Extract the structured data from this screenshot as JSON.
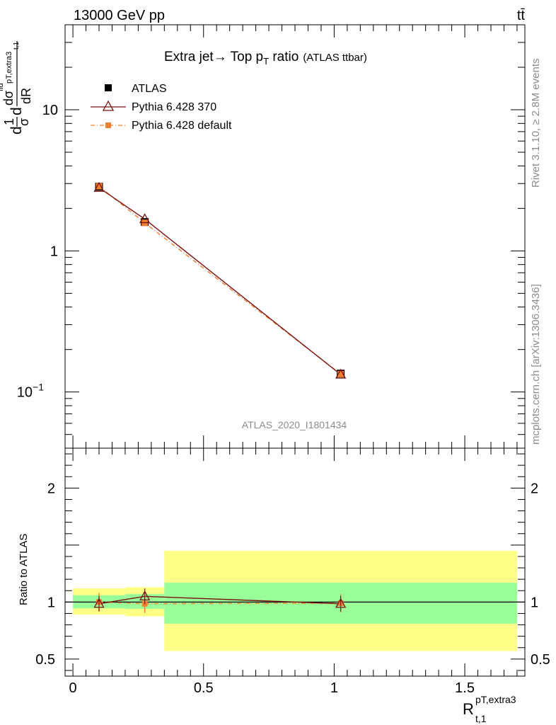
{
  "header": {
    "energy_label": "13000 GeV pp",
    "process_label": "tt̄"
  },
  "side_labels": {
    "rivet": "Rivet 3.1.10, ≥ 2.8M events",
    "mcplots": "mcplots.cern.ch [arXiv:1306.3436]"
  },
  "colors": {
    "atlas": "#000000",
    "pythia_370": "#7a1010",
    "pythia_default": "#f08030",
    "band_inner": "#99ff99",
    "band_outer": "#ffff88"
  },
  "chart_data": [
    {
      "type": "line",
      "title": "Extra jet→ Top p_T ratio (ATLAS ttbar)",
      "title_parts": {
        "main": "Extra jet→ Top p",
        "sub": "T",
        "rest": " ratio",
        "small": "(ATLAS ttbar)"
      },
      "ylabel": "d(1/σ)dσ^fid/dR_{pT,extra3 t,1}",
      "ylabel_parts": {
        "d1": "d",
        "one": "1",
        "sigma": "σ",
        "d2": "d",
        "dsigma": "dσ",
        "fid": "fid",
        "pT": "pT,extra3",
        "t1": "t,1",
        "dR": "dR"
      },
      "yscale": "log",
      "ylim": [
        0.04,
        40
      ],
      "xlim": [
        -0.03,
        1.73
      ],
      "yticks": [
        {
          "value": 10,
          "label": "10"
        },
        {
          "value": 1,
          "label": "1"
        },
        {
          "value": 0.1,
          "label": "10",
          "exp": "−1"
        }
      ],
      "watermark": "ATLAS_2020_I1801434",
      "legend_placement": "top-left",
      "series": [
        {
          "name": "ATLAS",
          "marker": "square",
          "x": [
            0.1,
            0.275,
            1.025
          ],
          "values": [
            2.85,
            1.6,
            0.135
          ]
        },
        {
          "name": "Pythia 6.428 370",
          "marker": "triangle",
          "x": [
            0.1,
            0.275,
            1.025
          ],
          "values": [
            2.8,
            1.68,
            0.133
          ]
        },
        {
          "name": "Pythia 6.428 default",
          "marker": "small-square",
          "x": [
            0.1,
            0.275,
            1.025
          ],
          "values": [
            2.87,
            1.58,
            0.134
          ]
        }
      ]
    },
    {
      "type": "line",
      "title": "",
      "ylabel": "Ratio to ATLAS",
      "xlabel": "R^{pT,extra3}_{t,1}",
      "xlabel_parts": {
        "main": "R",
        "sup": "pT,extra3",
        "sub": "t,1"
      },
      "ylim": [
        0.35,
        2.35
      ],
      "xlim": [
        -0.03,
        1.73
      ],
      "yticks": [
        {
          "value": 2,
          "label": "2"
        },
        {
          "value": 1,
          "label": "1"
        },
        {
          "value": 0.5,
          "label": "0.5"
        }
      ],
      "xticks": [
        {
          "value": 0,
          "label": "0"
        },
        {
          "value": 0.5,
          "label": "0.5"
        },
        {
          "value": 1,
          "label": "1"
        },
        {
          "value": 1.5,
          "label": "1.5"
        }
      ],
      "reference_line": 1,
      "bands": [
        {
          "x_range": [
            0,
            0.2
          ],
          "inner": [
            0.945,
            1.06
          ],
          "outer": [
            0.89,
            1.12
          ]
        },
        {
          "x_range": [
            0.2,
            0.35
          ],
          "inner": [
            0.94,
            1.07
          ],
          "outer": [
            0.875,
            1.13
          ]
        },
        {
          "x_range": [
            0.35,
            1.7
          ],
          "inner": [
            0.81,
            1.17
          ],
          "outer": [
            0.57,
            1.45
          ]
        }
      ],
      "series": [
        {
          "name": "Pythia 6.428 370",
          "x": [
            0.1,
            0.275,
            1.025
          ],
          "values": [
            0.985,
            1.05,
            0.985
          ]
        },
        {
          "name": "Pythia 6.428 default",
          "x": [
            0.1,
            0.275,
            1.025
          ],
          "values": [
            1.0,
            0.985,
            0.99
          ]
        }
      ]
    }
  ]
}
